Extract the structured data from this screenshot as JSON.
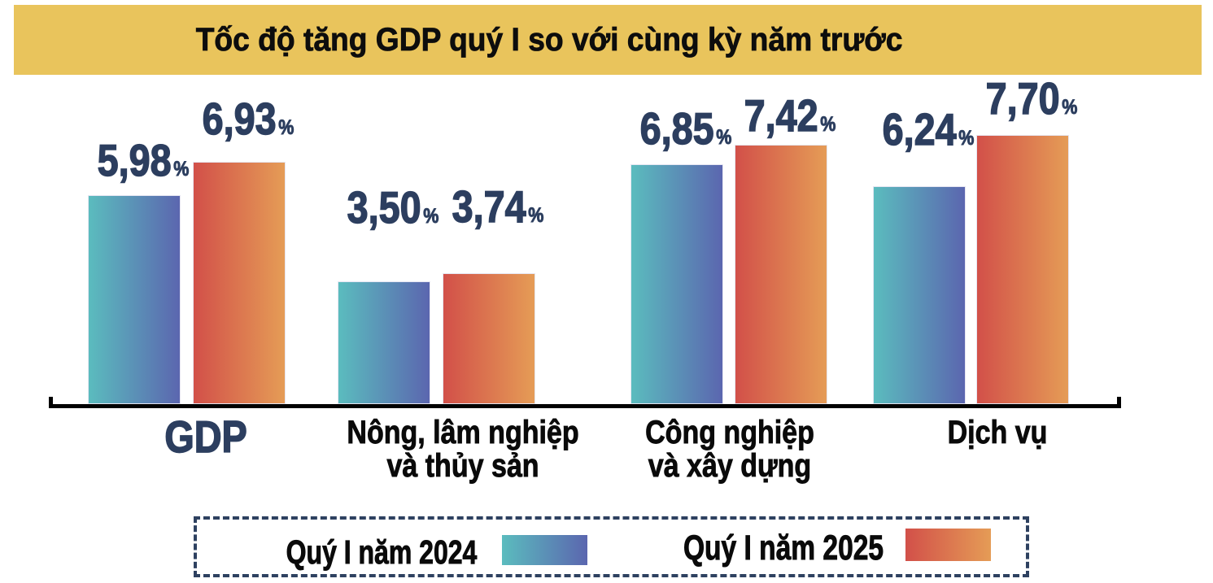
{
  "title": "Tốc độ tăng GDP quý I so với cùng kỳ năm trước",
  "chart_data": {
    "type": "bar",
    "title": "Tốc độ tăng GDP quý I so với cùng kỳ năm trước",
    "categories": [
      "GDP",
      "Nông, lâm nghiệp\nvà thủy sản",
      "Công nghiệp\nvà xây dựng",
      "Dịch vụ"
    ],
    "series": [
      {
        "name": "Quý I năm 2024",
        "values": [
          5.98,
          3.5,
          6.85,
          6.24
        ],
        "labels": [
          "5,98",
          "3,50",
          "6,85",
          "6,24"
        ],
        "gradient": [
          "#5bbcbe",
          "#5b66af"
        ]
      },
      {
        "name": "Quý I năm 2025",
        "values": [
          6.93,
          3.74,
          7.42,
          7.7
        ],
        "labels": [
          "6,93",
          "3,74",
          "7,42",
          "7,70"
        ],
        "gradient": [
          "#d25049",
          "#e59c56"
        ]
      }
    ],
    "unit": "%",
    "value_decimal_separator": ",",
    "ylim": [
      0,
      8
    ],
    "grid": false,
    "legend_position": "bottom"
  },
  "legend": {
    "items": [
      {
        "label": "Quý I năm 2024",
        "swatch": "gradient-teal-indigo"
      },
      {
        "label": "Quý I năm 2025",
        "swatch": "gradient-red-orange"
      }
    ]
  },
  "colors": {
    "banner_bg": "#e9c45c",
    "title_text": "#0d0d0d",
    "value_text": "#2c3e5f",
    "category_text": "#0a0a0a",
    "gdp_category_text": "#2c3e5f",
    "axis": "#000000",
    "legend_border": "#2e4160",
    "bar_2024_start": "#5bbcbe",
    "bar_2024_end": "#5b66af",
    "bar_2025_start": "#d25049",
    "bar_2025_end": "#e59c56"
  }
}
